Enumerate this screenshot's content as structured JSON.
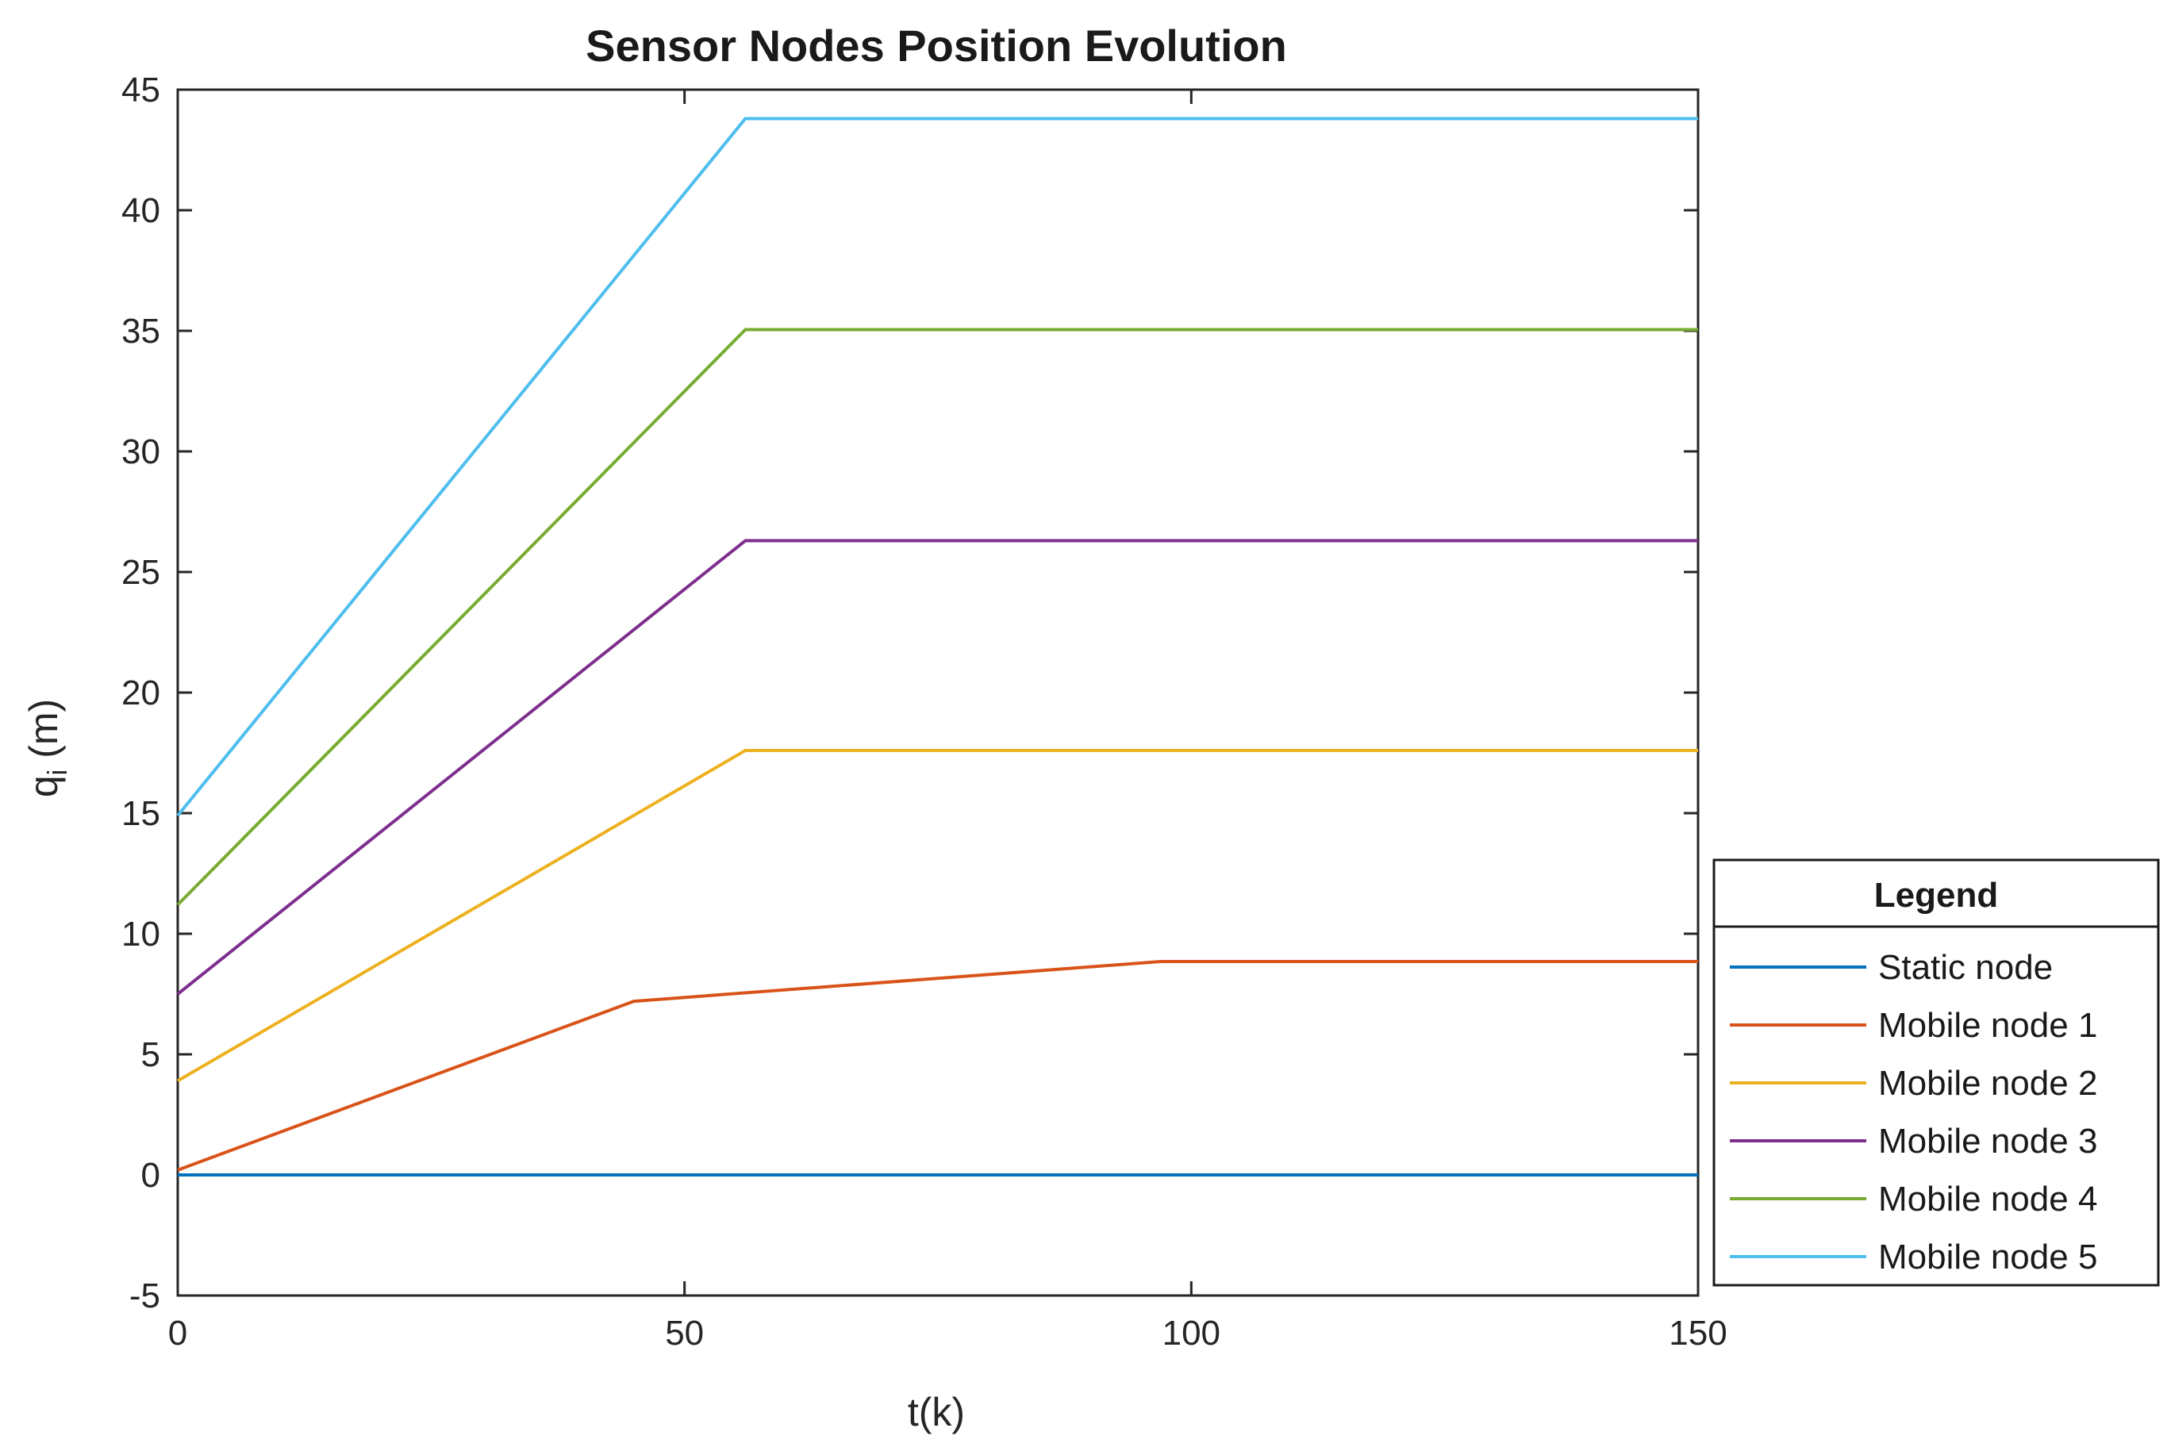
{
  "chart_data": {
    "type": "line",
    "title": "Sensor Nodes Position Evolution",
    "xlabel": "t(k)",
    "ylabel_main": "q",
    "ylabel_sub": "i",
    "ylabel_unit": "(m)",
    "xlim": [
      0,
      150
    ],
    "ylim": [
      -5,
      45
    ],
    "xticks": [
      0,
      50,
      100,
      150
    ],
    "yticks": [
      -5,
      0,
      5,
      10,
      15,
      20,
      25,
      30,
      35,
      40,
      45
    ],
    "grid": false,
    "legend": {
      "title": "Legend",
      "placement": "outside-bottom-right"
    },
    "series": [
      {
        "name": "Static node",
        "color": "#0072BD",
        "x": [
          0,
          150
        ],
        "y": [
          0,
          0
        ]
      },
      {
        "name": "Mobile node 1",
        "color": "#D95319",
        "x": [
          0,
          45,
          97,
          150
        ],
        "y": [
          0.2,
          7.2,
          8.85,
          8.85
        ]
      },
      {
        "name": "Mobile node 2",
        "color": "#EDB120",
        "x": [
          0,
          56,
          150
        ],
        "y": [
          3.9,
          17.6,
          17.6
        ]
      },
      {
        "name": "Mobile node 3",
        "color": "#7E2F8E",
        "x": [
          0,
          56,
          150
        ],
        "y": [
          7.5,
          26.3,
          26.3
        ]
      },
      {
        "name": "Mobile node 4",
        "color": "#77AC30",
        "x": [
          0,
          56,
          150
        ],
        "y": [
          11.2,
          35.05,
          35.05
        ]
      },
      {
        "name": "Mobile node 5",
        "color": "#4DBEEE",
        "x": [
          0,
          56,
          150
        ],
        "y": [
          14.9,
          43.8,
          43.8
        ]
      }
    ]
  }
}
